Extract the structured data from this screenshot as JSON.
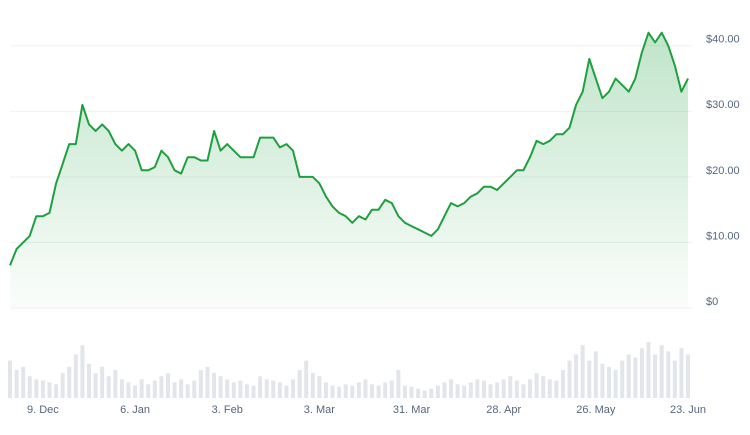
{
  "chart_data": {
    "type": "line",
    "categories": [
      null,
      null,
      null,
      null,
      null,
      "9. Dec",
      null,
      null,
      null,
      null,
      null,
      null,
      null,
      null,
      null,
      null,
      null,
      null,
      null,
      "6. Jan",
      null,
      null,
      null,
      null,
      null,
      null,
      null,
      null,
      null,
      null,
      null,
      null,
      null,
      "3. Feb",
      null,
      null,
      null,
      null,
      null,
      null,
      null,
      null,
      null,
      null,
      null,
      null,
      null,
      "3. Mar",
      null,
      null,
      null,
      null,
      null,
      null,
      null,
      null,
      null,
      null,
      null,
      null,
      null,
      "31. Mar",
      null,
      null,
      null,
      null,
      null,
      null,
      null,
      null,
      null,
      null,
      null,
      null,
      null,
      "28. Apr",
      null,
      null,
      null,
      null,
      null,
      null,
      null,
      null,
      null,
      null,
      null,
      null,
      null,
      "26. May",
      null,
      null,
      null,
      null,
      null,
      null,
      null,
      null,
      null,
      null,
      null,
      null,
      null,
      "23. Jun"
    ],
    "values": [
      6.5,
      9,
      10,
      11,
      14,
      14,
      14.5,
      19,
      22,
      25,
      25,
      31,
      28,
      27,
      28,
      27,
      25,
      24,
      25,
      24,
      21,
      21,
      21.5,
      24,
      23,
      21,
      20.5,
      23,
      23,
      22.5,
      22.5,
      27,
      24,
      25,
      24,
      23,
      23,
      23,
      26,
      26,
      26,
      24.5,
      25,
      24,
      20,
      20,
      20,
      19,
      17,
      15.5,
      14.5,
      14,
      13,
      14,
      13.5,
      15,
      15,
      16.5,
      16,
      14,
      13,
      12.5,
      12,
      11.5,
      11,
      12,
      14,
      16,
      15.5,
      16,
      17,
      17.5,
      18.5,
      18.5,
      18,
      19,
      20,
      21,
      21,
      23,
      25.5,
      25,
      25.5,
      26.5,
      26.5,
      27.5,
      31,
      33,
      38,
      35,
      32,
      33,
      35,
      34,
      33,
      35,
      39,
      42,
      40.5,
      42,
      40,
      37,
      33,
      35
    ],
    "volume": [
      60,
      45,
      50,
      35,
      30,
      28,
      25,
      22,
      40,
      50,
      70,
      85,
      55,
      40,
      50,
      35,
      45,
      30,
      25,
      20,
      30,
      22,
      28,
      35,
      40,
      25,
      30,
      22,
      28,
      45,
      50,
      40,
      35,
      30,
      25,
      28,
      22,
      20,
      35,
      30,
      28,
      25,
      20,
      30,
      45,
      60,
      40,
      35,
      25,
      20,
      18,
      22,
      20,
      25,
      30,
      22,
      20,
      25,
      28,
      45,
      20,
      18,
      15,
      12,
      15,
      20,
      25,
      30,
      22,
      20,
      25,
      30,
      28,
      22,
      25,
      30,
      35,
      28,
      22,
      30,
      40,
      35,
      30,
      28,
      45,
      60,
      70,
      85,
      60,
      75,
      55,
      50,
      45,
      60,
      70,
      65,
      80,
      90,
      70,
      85,
      75,
      60,
      80,
      70
    ],
    "color": "#1fa040",
    "volume_color": "#e2e5ea",
    "ylim": [
      0,
      45
    ],
    "yticks": [
      {
        "value": 0,
        "label": "$0"
      },
      {
        "value": 10,
        "label": "$10.00"
      },
      {
        "value": 20,
        "label": "$20.00"
      },
      {
        "value": 30,
        "label": "$30.00"
      },
      {
        "value": 40,
        "label": "$40.00"
      }
    ],
    "grid": true
  }
}
